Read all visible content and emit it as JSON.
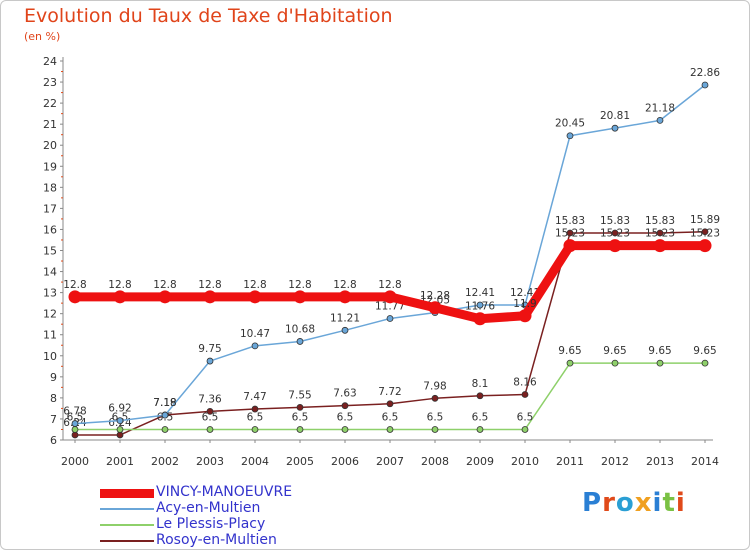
{
  "title": "Evolution du Taux de Taxe d'Habitation",
  "unit": "(en %)",
  "brand": {
    "letters": [
      {
        "ch": "P",
        "color": "#2a7fd4"
      },
      {
        "ch": "r",
        "color": "#e04a1a"
      },
      {
        "ch": "o",
        "color": "#2a9fd4"
      },
      {
        "ch": "x",
        "color": "#f0a020"
      },
      {
        "ch": "i",
        "color": "#2a7fd4"
      },
      {
        "ch": "t",
        "color": "#7ac143"
      },
      {
        "ch": "i",
        "color": "#e04a1a"
      }
    ]
  },
  "chart_data": {
    "type": "line",
    "x": [
      "2000",
      "2001",
      "2002",
      "2003",
      "2004",
      "2005",
      "2006",
      "2007",
      "2008",
      "2009",
      "2010",
      "2011",
      "2012",
      "2013",
      "2014"
    ],
    "ylim": [
      6,
      24
    ],
    "yticks": [
      6,
      7,
      8,
      9,
      10,
      11,
      12,
      13,
      14,
      15,
      16,
      17,
      18,
      19,
      20,
      21,
      22,
      23,
      24
    ],
    "grid": false,
    "legend_position": "bottom-left",
    "series": [
      {
        "name": "Rosoy-en-Multien",
        "color": "#7a2020",
        "width": 1.5,
        "values": [
          6.24,
          6.24,
          7.19,
          7.36,
          7.47,
          7.55,
          7.63,
          7.72,
          7.98,
          8.1,
          8.16,
          15.83,
          15.83,
          15.83,
          15.89
        ],
        "labels": [
          "6.24",
          "6.24",
          "7.19",
          "7.36",
          "7.47",
          "7.55",
          "7.63",
          "7.72",
          "7.98",
          "8.1",
          "8.16",
          "15.83",
          "15.83",
          "15.83",
          "15.89"
        ]
      },
      {
        "name": "Le Plessis-Placy",
        "color": "#8ed06a",
        "width": 1.5,
        "values": [
          6.5,
          6.5,
          6.5,
          6.5,
          6.5,
          6.5,
          6.5,
          6.5,
          6.5,
          6.5,
          6.5,
          9.65,
          9.65,
          9.65,
          9.65
        ],
        "labels": [
          "6.5",
          "6.5",
          "6.5",
          "6.5",
          "6.5",
          "6.5",
          "6.5",
          "6.5",
          "6.5",
          "6.5",
          "6.5",
          "9.65",
          "9.65",
          "9.65",
          "9.65"
        ]
      },
      {
        "name": "Acy-en-Multien",
        "color": "#6aa6d8",
        "width": 1.5,
        "values": [
          6.78,
          6.92,
          7.18,
          9.75,
          10.47,
          10.68,
          11.21,
          11.77,
          12.05,
          12.41,
          12.41,
          20.45,
          20.81,
          21.18,
          22.86
        ],
        "labels": [
          "6.78",
          "6.92",
          "7.18",
          "9.75",
          "10.47",
          "10.68",
          "11.21",
          "11.77",
          "12.05",
          "12.41",
          "12.41",
          "20.45",
          "20.81",
          "21.18",
          "22.86"
        ]
      },
      {
        "name": "VINCY-MANOEUVRE",
        "color": "#ee1111",
        "width": 9,
        "values": [
          12.8,
          12.8,
          12.8,
          12.8,
          12.8,
          12.8,
          12.8,
          12.8,
          12.28,
          11.76,
          11.9,
          15.23,
          15.23,
          15.23,
          15.23
        ],
        "labels": [
          "12.8",
          "12.8",
          "12.8",
          "12.8",
          "12.8",
          "12.8",
          "12.8",
          "12.8",
          "12.28",
          "11.76",
          "11.9",
          "15.23",
          "15.23",
          "15.23",
          "15.23"
        ]
      }
    ],
    "legend": [
      {
        "name": "VINCY-MANOEUVRE",
        "color": "#ee1111",
        "text_color": "#3333cc",
        "thickness": 9
      },
      {
        "name": "Acy-en-Multien",
        "color": "#6aa6d8",
        "text_color": "#3333cc",
        "thickness": 2
      },
      {
        "name": "Le Plessis-Placy",
        "color": "#8ed06a",
        "text_color": "#3333cc",
        "thickness": 2
      },
      {
        "name": "Rosoy-en-Multien",
        "color": "#7a2020",
        "text_color": "#3333cc",
        "thickness": 2
      }
    ]
  }
}
